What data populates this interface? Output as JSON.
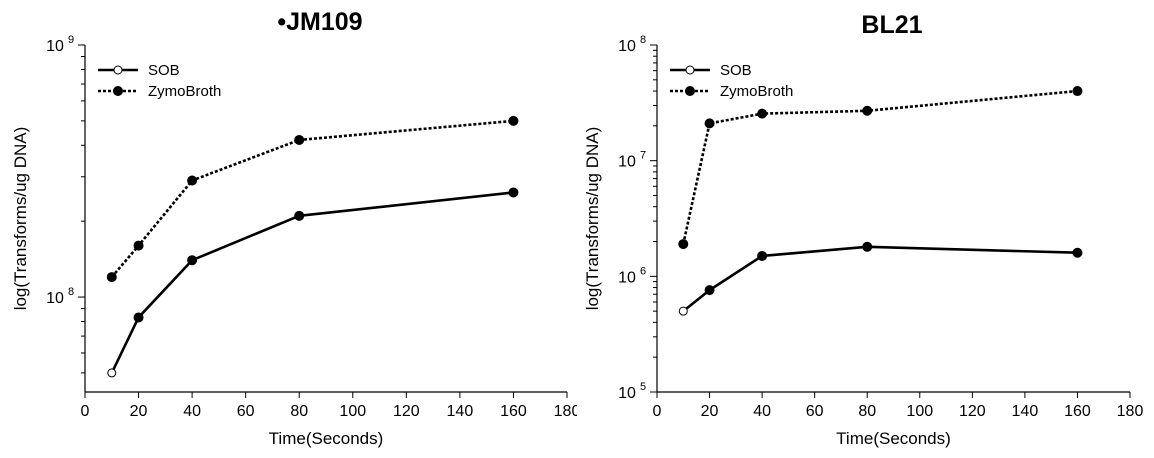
{
  "chart_data": [
    {
      "type": "line",
      "title": "•JM109",
      "xlabel": "Time(Seconds)",
      "ylabel": "log(Transforms/ug DNA)",
      "xlim": [
        0,
        180
      ],
      "xticks": [
        "0",
        "20",
        "40",
        "60",
        "80",
        "100",
        "120",
        "140",
        "160",
        "180"
      ],
      "yscale": "log",
      "ylim": [
        42000000,
        1000000000
      ],
      "yticks": [
        {
          "base": "10",
          "exp": "8",
          "value": 100000000
        },
        {
          "base": "10",
          "exp": "9",
          "value": 1000000000
        }
      ],
      "grid": false,
      "legend_position": "top-left",
      "x": [
        10,
        20,
        40,
        80,
        160
      ],
      "series": [
        {
          "name": "SOB",
          "style": "solid",
          "values": [
            50000000,
            83000000,
            140000000,
            210000000,
            260000000
          ],
          "first_marker_open": true
        },
        {
          "name": "ZymoBroth",
          "style": "dotted",
          "values": [
            120000000,
            160000000,
            290000000,
            420000000,
            500000000
          ],
          "first_marker_open": false
        }
      ]
    },
    {
      "type": "line",
      "title": "BL21",
      "xlabel": "Time(Seconds)",
      "ylabel": "log(Transforms/ug DNA)",
      "xlim": [
        0,
        180
      ],
      "xticks": [
        "0",
        "20",
        "40",
        "60",
        "80",
        "100",
        "120",
        "140",
        "160",
        "180"
      ],
      "yscale": "log",
      "ylim": [
        100000,
        100000000
      ],
      "yticks": [
        {
          "base": "10",
          "exp": "5",
          "value": 100000
        },
        {
          "base": "10",
          "exp": "6",
          "value": 1000000
        },
        {
          "base": "10",
          "exp": "7",
          "value": 10000000
        },
        {
          "base": "10",
          "exp": "8",
          "value": 100000000
        }
      ],
      "grid": false,
      "legend_position": "top-left",
      "x": [
        10,
        20,
        40,
        80,
        160
      ],
      "series": [
        {
          "name": "SOB",
          "style": "solid",
          "values": [
            500000,
            760000,
            1500000,
            1800000,
            1600000
          ],
          "first_marker_open": true
        },
        {
          "name": "ZymoBroth",
          "style": "dotted",
          "values": [
            1900000,
            21000000,
            25500000,
            27000000,
            40000000
          ],
          "first_marker_open": false
        }
      ]
    }
  ],
  "colors": {
    "axis": "#000000",
    "marker_fill": "#000000",
    "background": "#ffffff"
  }
}
